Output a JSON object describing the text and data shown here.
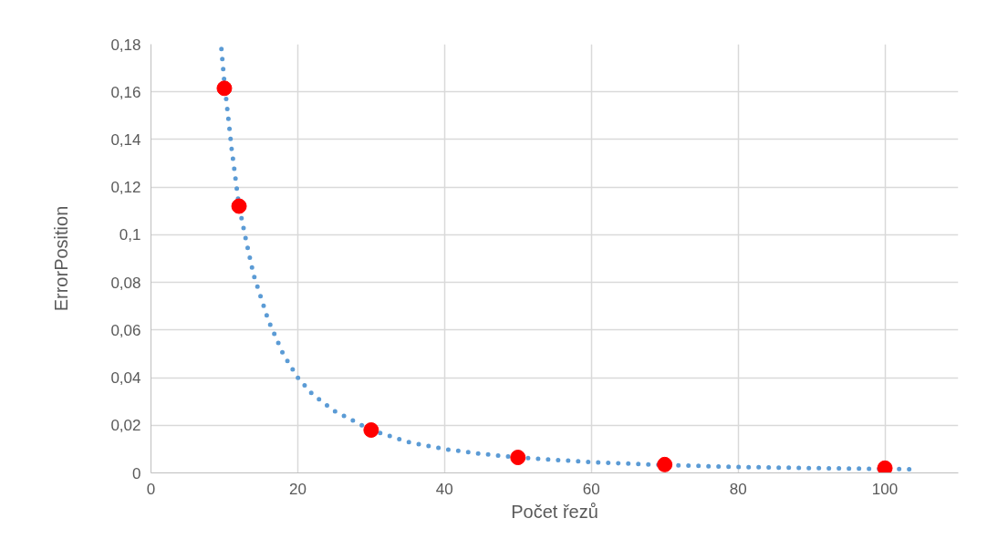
{
  "chart_data": {
    "type": "scatter",
    "xlabel": "Počet řezů",
    "ylabel": "ErrorPosition",
    "xlim": [
      0,
      110
    ],
    "ylim": [
      0,
      0.18
    ],
    "xticks": [
      0,
      20,
      40,
      60,
      80,
      100
    ],
    "yticks": [
      {
        "value": 0,
        "label": "0"
      },
      {
        "value": 0.02,
        "label": "0,02"
      },
      {
        "value": 0.04,
        "label": "0,04"
      },
      {
        "value": 0.06,
        "label": "0,06"
      },
      {
        "value": 0.08,
        "label": "0,08"
      },
      {
        "value": 0.1,
        "label": "0,1"
      },
      {
        "value": 0.12,
        "label": "0,12"
      },
      {
        "value": 0.14,
        "label": "0,14"
      },
      {
        "value": 0.16,
        "label": "0,16"
      },
      {
        "value": 0.18,
        "label": "0,18"
      }
    ],
    "grid": true,
    "series": [
      {
        "type": "line",
        "line_style": "dotted",
        "color": "#5b9bd5",
        "x": [
          9.6,
          10,
          11,
          12,
          13,
          14,
          16,
          18,
          20,
          22,
          25,
          30,
          35,
          40,
          45,
          50,
          60,
          70,
          80,
          90,
          100,
          104
        ],
        "values": [
          0.178,
          0.164,
          0.136,
          0.112,
          0.097,
          0.083,
          0.064,
          0.05,
          0.04,
          0.033,
          0.026,
          0.018,
          0.013,
          0.01,
          0.008,
          0.0065,
          0.0045,
          0.0033,
          0.0025,
          0.002,
          0.0017,
          0.0015
        ]
      },
      {
        "type": "scatter",
        "marker": "circle",
        "color": "#ff0000",
        "x": [
          10,
          12,
          30,
          50,
          70,
          100
        ],
        "values": [
          0.1615,
          0.112,
          0.018,
          0.0065,
          0.0035,
          0.002
        ]
      }
    ]
  }
}
